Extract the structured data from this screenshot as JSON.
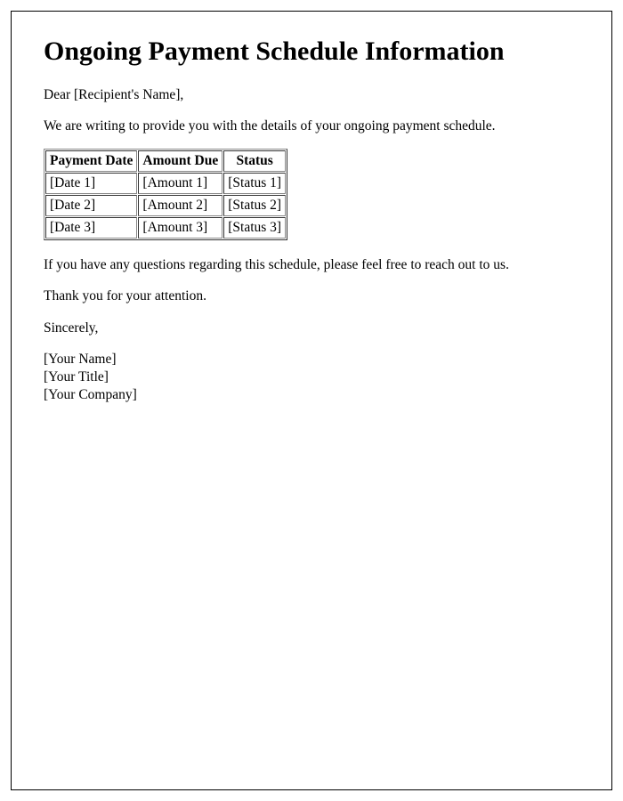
{
  "title": "Ongoing Payment Schedule Information",
  "greeting": "Dear [Recipient's Name],",
  "intro": "We are writing to provide you with the details of your ongoing payment schedule.",
  "table": {
    "type": "table",
    "columns": [
      "Payment Date",
      "Amount Due",
      "Status"
    ],
    "rows": [
      [
        "[Date 1]",
        "[Amount 1]",
        "[Status 1]"
      ],
      [
        "[Date 2]",
        "[Amount 2]",
        "[Status 2]"
      ],
      [
        "[Date 3]",
        "[Amount 3]",
        "[Status 3]"
      ]
    ],
    "border_color": "#888888",
    "text_color": "#000000",
    "header_fontsize": 15.5,
    "cell_fontsize": 15.5
  },
  "questions": "If you have any questions regarding this schedule, please feel free to reach out to us.",
  "thanks": "Thank you for your attention.",
  "closing": "Sincerely,",
  "signature": {
    "name": "[Your Name]",
    "title": "[Your Title]",
    "company": "[Your Company]"
  },
  "background_color": "#ffffff",
  "text_color": "#000000",
  "title_fontsize": 30,
  "body_fontsize": 15.5
}
